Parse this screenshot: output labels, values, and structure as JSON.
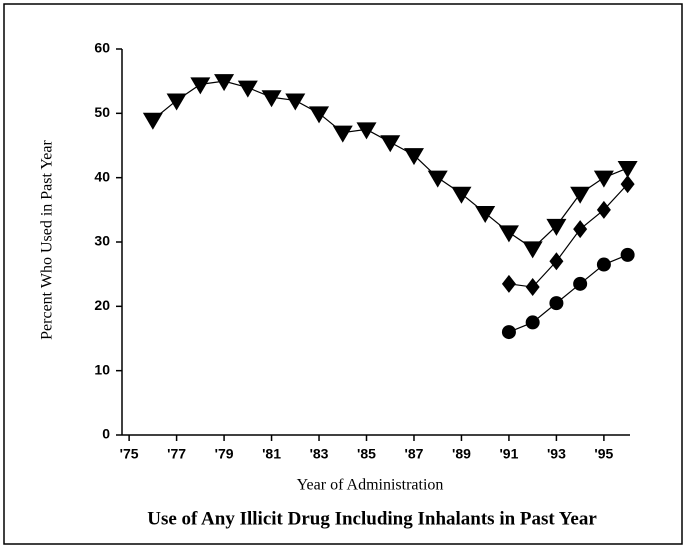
{
  "chart_data": {
    "type": "line",
    "title": "Use of Any Illicit Drug Including Inhalants in Past Year",
    "xlabel": "Year of Administration",
    "ylabel": "Percent Who Used in Past Year",
    "x": [
      1976,
      1977,
      1978,
      1979,
      1980,
      1981,
      1982,
      1983,
      1984,
      1985,
      1986,
      1987,
      1988,
      1989,
      1990,
      1991,
      1992,
      1993,
      1994,
      1995,
      1996
    ],
    "series": [
      {
        "color": "#000000",
        "marker": "triangle-down",
        "values": [
          49,
          52,
          54.5,
          55,
          54,
          52.5,
          52,
          50,
          47,
          47.5,
          45.5,
          43.5,
          40,
          37.5,
          34.5,
          31.5,
          29,
          32.5,
          37.5,
          40,
          41.5
        ]
      },
      {
        "color": "#000000",
        "marker": "diamond",
        "values": [
          null,
          null,
          null,
          null,
          null,
          null,
          null,
          null,
          null,
          null,
          null,
          null,
          null,
          null,
          null,
          23.5,
          23,
          27,
          32,
          35,
          39
        ]
      },
      {
        "color": "#000000",
        "marker": "circle",
        "values": [
          null,
          null,
          null,
          null,
          null,
          null,
          null,
          null,
          null,
          null,
          null,
          null,
          null,
          null,
          null,
          16,
          17.5,
          20.5,
          23.5,
          26.5,
          28
        ]
      }
    ],
    "xlim": [
      1974.7,
      1996.1
    ],
    "xticks": [
      {
        "value": 1975,
        "label": "'75"
      },
      {
        "value": 1977,
        "label": "'77"
      },
      {
        "value": 1979,
        "label": "'79"
      },
      {
        "value": 1981,
        "label": "'81"
      },
      {
        "value": 1983,
        "label": "'83"
      },
      {
        "value": 1985,
        "label": "'85"
      },
      {
        "value": 1987,
        "label": "'87"
      },
      {
        "value": 1989,
        "label": "'89"
      },
      {
        "value": 1991,
        "label": "'91"
      },
      {
        "value": 1993,
        "label": "'93"
      },
      {
        "value": 1995,
        "label": "'95"
      }
    ],
    "ylim": [
      0,
      60
    ],
    "yticks": [
      0,
      10,
      20,
      30,
      40,
      50,
      60
    ]
  }
}
